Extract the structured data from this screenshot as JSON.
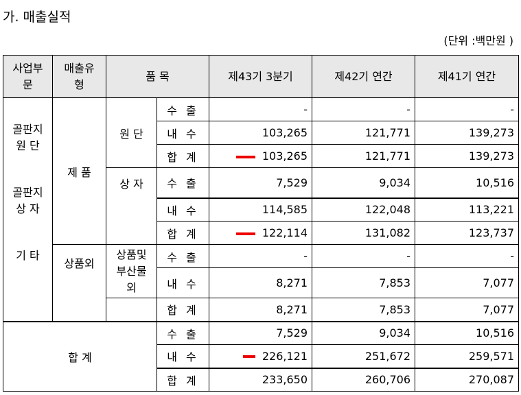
{
  "section_title": "가. 매출실적",
  "unit_label": "(단위 :백만원 )",
  "headers": {
    "division": "사업부\n문",
    "sales_type": "매출유\n형",
    "item": "품 목",
    "q43": "제43기 3분기",
    "y42": "제42기 연간",
    "y41": "제41기 연간"
  },
  "divisions": [
    "골판지\n원 단",
    "골판지\n상 자",
    "기  타"
  ],
  "sales_types": {
    "product": "제 품",
    "merch": "상품외"
  },
  "items": {
    "fabric": "원 단",
    "box": "상 자",
    "merch": "상품및\n부산물\n외"
  },
  "total_label": "합 계",
  "row_labels": {
    "export": "수 출",
    "domestic": "내 수",
    "sum": "합 계"
  },
  "rows": [
    {
      "label": "수 출",
      "q43": "-",
      "y42": "-",
      "y41": "-"
    },
    {
      "label": "내 수",
      "q43": "103,265",
      "y42": "121,771",
      "y41": "139,273"
    },
    {
      "label": "합 계",
      "q43": "103,265",
      "y42": "121,771",
      "y41": "139,273"
    },
    {
      "label": "수 출",
      "q43": "7,529",
      "y42": "9,034",
      "y41": "10,516"
    },
    {
      "label": "내 수",
      "q43": "114,585",
      "y42": "122,048",
      "y41": "113,221"
    },
    {
      "label": "합 계",
      "q43": "122,114",
      "y42": "131,082",
      "y41": "123,737"
    },
    {
      "label": "수 출",
      "q43": "-",
      "y42": "-",
      "y41": "-"
    },
    {
      "label": "내 수",
      "q43": "8,271",
      "y42": "7,853",
      "y41": "7,077"
    },
    {
      "label": "합 계",
      "q43": "8,271",
      "y42": "7,853",
      "y41": "7,077"
    },
    {
      "label": "수 출",
      "q43": "7,529",
      "y42": "9,034",
      "y41": "10,516"
    },
    {
      "label": "내 수",
      "q43": "226,121",
      "y42": "251,672",
      "y41": "259,571"
    },
    {
      "label": "합 계",
      "q43": "233,650",
      "y42": "260,706",
      "y41": "270,087"
    }
  ],
  "colors": {
    "header_bg": "#e8e8e8",
    "highlight_mark": "#ee0000"
  }
}
